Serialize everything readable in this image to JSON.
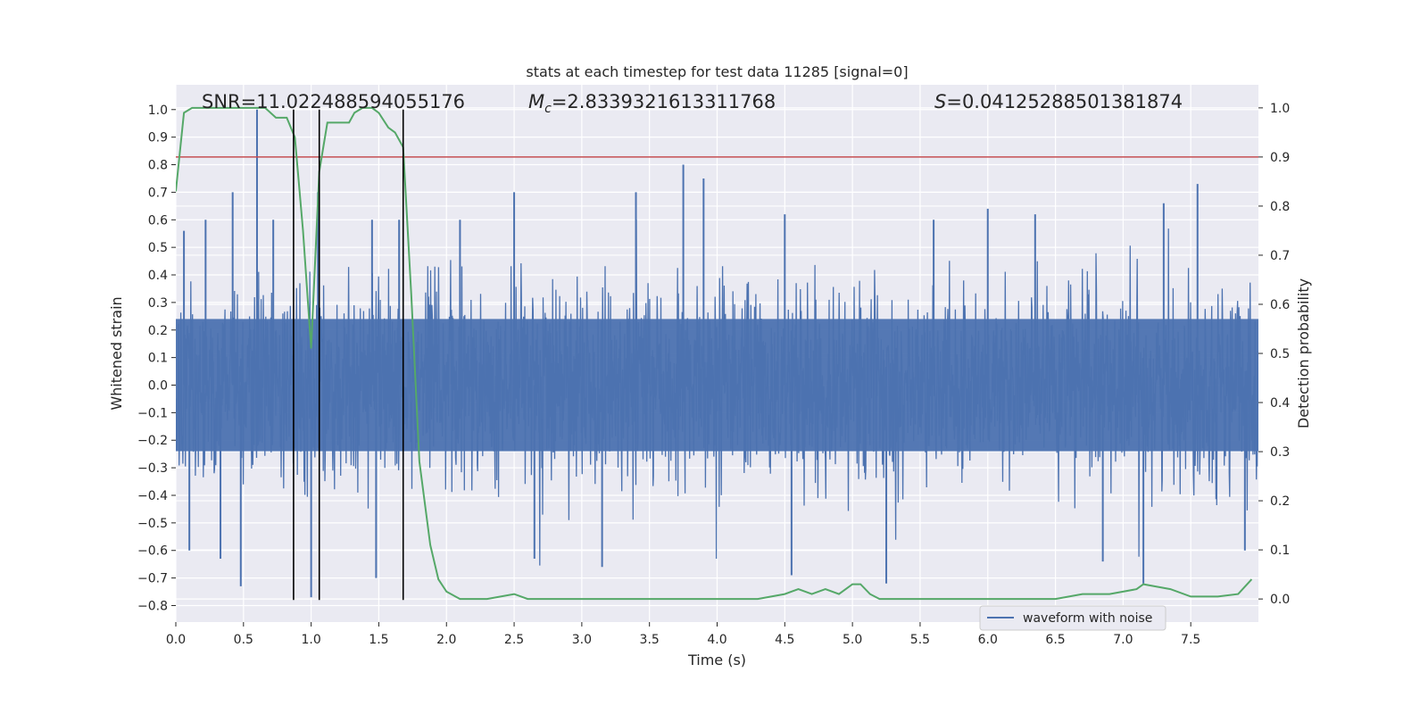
{
  "chart_data": {
    "type": "line",
    "title": "stats at each timestep for test data 11285 [signal=0]",
    "xlabel": "Time (s)",
    "ylabel": "Whitened strain",
    "y2label": "Detection probability",
    "xlim": [
      0.0,
      8.0
    ],
    "ylim": [
      -0.86,
      1.09
    ],
    "y2lim": [
      -0.047,
      1.047
    ],
    "x_ticks": [
      0.0,
      0.5,
      1.0,
      1.5,
      2.0,
      2.5,
      3.0,
      3.5,
      4.0,
      4.5,
      5.0,
      5.5,
      6.0,
      6.5,
      7.0,
      7.5
    ],
    "x_tick_labels": [
      "0.0",
      "0.5",
      "1.0",
      "1.5",
      "2.0",
      "2.5",
      "3.0",
      "3.5",
      "4.0",
      "4.5",
      "5.0",
      "5.5",
      "6.0",
      "6.5",
      "7.0",
      "7.5"
    ],
    "y_ticks": [
      -0.8,
      -0.7,
      -0.6,
      -0.5,
      -0.4,
      -0.3,
      -0.2,
      -0.1,
      0.0,
      0.1,
      0.2,
      0.3,
      0.4,
      0.5,
      0.6,
      0.7,
      0.8,
      0.9,
      1.0
    ],
    "y_tick_labels": [
      "−0.8",
      "−0.7",
      "−0.6",
      "−0.5",
      "−0.4",
      "−0.3",
      "−0.2",
      "−0.1",
      "0.0",
      "0.1",
      "0.2",
      "0.3",
      "0.4",
      "0.5",
      "0.6",
      "0.7",
      "0.8",
      "0.9",
      "1.0"
    ],
    "y2_ticks": [
      0.0,
      0.1,
      0.2,
      0.3,
      0.4,
      0.5,
      0.6,
      0.7,
      0.8,
      0.9,
      1.0
    ],
    "y2_tick_labels": [
      "0.0",
      "0.1",
      "0.2",
      "0.3",
      "0.4",
      "0.5",
      "0.6",
      "0.7",
      "0.8",
      "0.9",
      "1.0"
    ],
    "grid": true,
    "annotations": {
      "snr": "SNR=11.022488594055176",
      "mc_symbol": "M",
      "mc_sub": "c",
      "mc_value": "=2.8339321613311768",
      "s_symbol": "S",
      "s_value": "=0.04125288501381874"
    },
    "legend": {
      "placement": "lower-right",
      "entries": [
        "waveform with noise"
      ]
    },
    "series": [
      {
        "name": "waveform with noise",
        "axis": "left",
        "color": "#4c72b0",
        "description": "noisy whitened strain, mostly within ±0.4 with spikes to ±0.8",
        "envelope_upper_typical": 0.4,
        "envelope_lower_typical": -0.4,
        "spikes": [
          {
            "x": 0.06,
            "y": 0.56
          },
          {
            "x": 0.1,
            "y": -0.6
          },
          {
            "x": 0.22,
            "y": 0.6
          },
          {
            "x": 0.33,
            "y": -0.63
          },
          {
            "x": 0.42,
            "y": 0.7
          },
          {
            "x": 0.48,
            "y": -0.73
          },
          {
            "x": 0.6,
            "y": 1.0
          },
          {
            "x": 0.72,
            "y": 0.6
          },
          {
            "x": 1.0,
            "y": -0.77
          },
          {
            "x": 1.05,
            "y": 0.7
          },
          {
            "x": 1.45,
            "y": 0.6
          },
          {
            "x": 1.48,
            "y": -0.7
          },
          {
            "x": 1.65,
            "y": 0.6
          },
          {
            "x": 2.1,
            "y": 0.6
          },
          {
            "x": 2.5,
            "y": 0.7
          },
          {
            "x": 2.65,
            "y": -0.63
          },
          {
            "x": 3.15,
            "y": -0.66
          },
          {
            "x": 3.4,
            "y": 0.7
          },
          {
            "x": 3.75,
            "y": 0.8
          },
          {
            "x": 3.9,
            "y": 0.75
          },
          {
            "x": 4.5,
            "y": 0.62
          },
          {
            "x": 4.55,
            "y": -0.69
          },
          {
            "x": 5.25,
            "y": -0.72
          },
          {
            "x": 5.6,
            "y": 0.6
          },
          {
            "x": 6.0,
            "y": 0.64
          },
          {
            "x": 6.35,
            "y": 0.62
          },
          {
            "x": 6.85,
            "y": -0.64
          },
          {
            "x": 7.15,
            "y": -0.72
          },
          {
            "x": 7.3,
            "y": 0.66
          },
          {
            "x": 7.55,
            "y": 0.73
          },
          {
            "x": 7.9,
            "y": -0.6
          }
        ]
      },
      {
        "axis": "right",
        "color": "#55a868",
        "x": [
          0.0,
          0.06,
          0.12,
          0.2,
          0.3,
          0.4,
          0.5,
          0.6,
          0.66,
          0.74,
          0.82,
          0.88,
          0.94,
          1.0,
          1.06,
          1.12,
          1.2,
          1.28,
          1.32,
          1.38,
          1.45,
          1.5,
          1.57,
          1.62,
          1.68,
          1.74,
          1.8,
          1.88,
          1.94,
          2.0,
          2.1,
          2.3,
          2.5,
          2.6,
          2.8,
          3.0,
          3.3,
          3.5,
          3.7,
          4.0,
          4.3,
          4.5,
          4.6,
          4.7,
          4.8,
          4.9,
          5.0,
          5.06,
          5.13,
          5.2,
          5.35,
          5.5,
          5.7,
          6.0,
          6.3,
          6.5,
          6.7,
          6.9,
          7.1,
          7.15,
          7.25,
          7.35,
          7.5,
          7.7,
          7.85,
          7.95
        ],
        "values": [
          0.83,
          0.99,
          1.0,
          1.0,
          1.0,
          1.0,
          1.0,
          1.0,
          1.0,
          0.98,
          0.98,
          0.94,
          0.75,
          0.51,
          0.87,
          0.97,
          0.97,
          0.97,
          0.99,
          1.0,
          1.0,
          0.99,
          0.96,
          0.95,
          0.92,
          0.62,
          0.28,
          0.11,
          0.04,
          0.015,
          0.0,
          0.0,
          0.01,
          0.0,
          0.0,
          0.0,
          0.0,
          0.0,
          0.0,
          0.0,
          0.0,
          0.01,
          0.02,
          0.01,
          0.02,
          0.01,
          0.03,
          0.03,
          0.01,
          0.0,
          0.0,
          0.0,
          0.0,
          0.0,
          0.0,
          0.0,
          0.01,
          0.01,
          0.02,
          0.03,
          0.025,
          0.02,
          0.005,
          0.005,
          0.01,
          0.04
        ]
      },
      {
        "axis": "right",
        "color": "#c44e52",
        "threshold": 0.9
      },
      {
        "color": "#000000",
        "vlines_x": [
          0.87,
          1.06,
          1.68
        ],
        "vline_ymin": -0.78,
        "vline_ymax": 1.0
      }
    ]
  }
}
